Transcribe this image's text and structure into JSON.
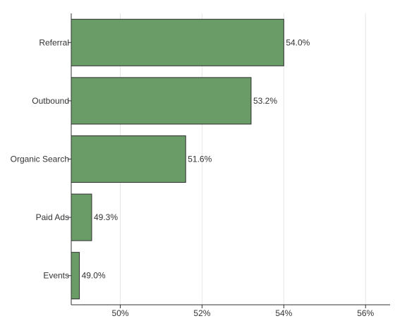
{
  "chart_data": {
    "type": "bar",
    "orientation": "horizontal",
    "title": "",
    "xlabel": "",
    "ylabel": "",
    "categories": [
      "Referral",
      "Outbound",
      "Organic Search",
      "Paid Ads",
      "Events"
    ],
    "values": [
      54.0,
      53.2,
      51.6,
      49.3,
      49.0
    ],
    "value_labels": [
      "54.0%",
      "53.2%",
      "51.6%",
      "49.3%",
      "49.0%"
    ],
    "xlim": [
      48.8,
      56.6
    ],
    "xticks": [
      50,
      52,
      54,
      56
    ],
    "xtick_labels": [
      "50%",
      "52%",
      "54%",
      "56%"
    ],
    "grid": "vertical",
    "legend": "none",
    "bar_color": "#6a9c68",
    "bar_edge_color": "#2f2f2f"
  }
}
